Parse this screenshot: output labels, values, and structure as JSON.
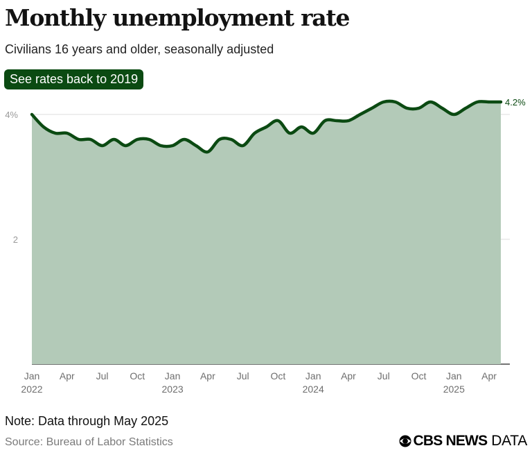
{
  "header": {
    "title": "Monthly unemployment rate",
    "subtitle": "Civilians 16 years and older, seasonally adjusted",
    "button_label": "See rates back to 2019"
  },
  "footer": {
    "note": "Note: Data through May 2025",
    "source": "Source: Bureau of Labor Statistics",
    "logo_primary": "CBS NEWS",
    "logo_secondary": "DATA",
    "logo_icon": "cbs-eye-icon"
  },
  "colors": {
    "line": "#0b4a12",
    "area": "#b3cab8",
    "button_bg": "#0b4a12",
    "grid": "#dcdcdc",
    "tick_text": "#9a9a9a",
    "axis_text": "#6e6e6e"
  },
  "chart_data": {
    "type": "area",
    "title": "Monthly unemployment rate",
    "subtitle": "Civilians 16 years and older, seasonally adjusted",
    "xlabel": "",
    "ylabel": "",
    "ylim": [
      0,
      4.2
    ],
    "yticks": [
      {
        "value": 2,
        "label": "2"
      },
      {
        "value": 4,
        "label": "4%"
      }
    ],
    "x_tick_labels": [
      {
        "index": 0,
        "month": "Jan",
        "year": "2022"
      },
      {
        "index": 3,
        "month": "Apr",
        "year": ""
      },
      {
        "index": 6,
        "month": "Jul",
        "year": ""
      },
      {
        "index": 9,
        "month": "Oct",
        "year": ""
      },
      {
        "index": 12,
        "month": "Jan",
        "year": "2023"
      },
      {
        "index": 15,
        "month": "Apr",
        "year": ""
      },
      {
        "index": 18,
        "month": "Jul",
        "year": ""
      },
      {
        "index": 21,
        "month": "Oct",
        "year": ""
      },
      {
        "index": 24,
        "month": "Jan",
        "year": "2024"
      },
      {
        "index": 27,
        "month": "Apr",
        "year": ""
      },
      {
        "index": 30,
        "month": "Jul",
        "year": ""
      },
      {
        "index": 33,
        "month": "Oct",
        "year": ""
      },
      {
        "index": 36,
        "month": "Jan",
        "year": "2025"
      },
      {
        "index": 39,
        "month": "Apr",
        "year": ""
      }
    ],
    "x": [
      "2022-01",
      "2022-02",
      "2022-03",
      "2022-04",
      "2022-05",
      "2022-06",
      "2022-07",
      "2022-08",
      "2022-09",
      "2022-10",
      "2022-11",
      "2022-12",
      "2023-01",
      "2023-02",
      "2023-03",
      "2023-04",
      "2023-05",
      "2023-06",
      "2023-07",
      "2023-08",
      "2023-09",
      "2023-10",
      "2023-11",
      "2023-12",
      "2024-01",
      "2024-02",
      "2024-03",
      "2024-04",
      "2024-05",
      "2024-06",
      "2024-07",
      "2024-08",
      "2024-09",
      "2024-10",
      "2024-11",
      "2024-12",
      "2025-01",
      "2025-02",
      "2025-03",
      "2025-04",
      "2025-05"
    ],
    "series": [
      {
        "values": [
          4.0,
          3.8,
          3.7,
          3.7,
          3.6,
          3.6,
          3.5,
          3.6,
          3.5,
          3.6,
          3.6,
          3.5,
          3.5,
          3.6,
          3.5,
          3.4,
          3.6,
          3.6,
          3.5,
          3.7,
          3.8,
          3.9,
          3.7,
          3.8,
          3.7,
          3.9,
          3.9,
          3.9,
          4.0,
          4.1,
          4.2,
          4.2,
          4.1,
          4.1,
          4.2,
          4.1,
          4.0,
          4.1,
          4.2,
          4.2,
          4.2
        ]
      }
    ],
    "end_label": "4.2%",
    "grid": true
  }
}
